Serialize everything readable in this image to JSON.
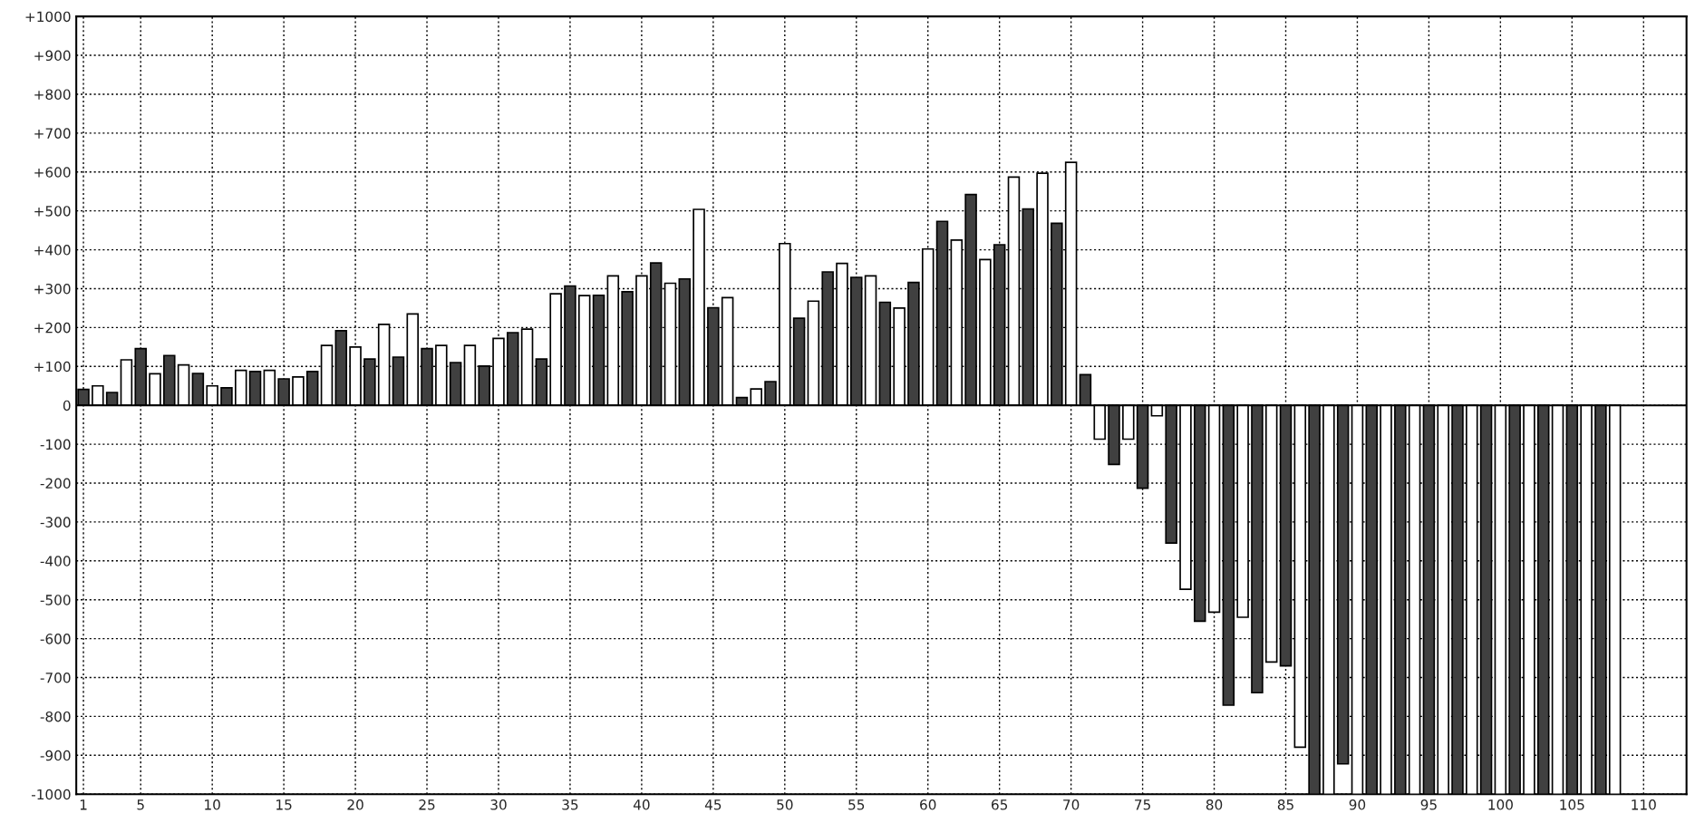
{
  "chart_data": {
    "type": "bar",
    "x": [
      1,
      2,
      3,
      4,
      5,
      6,
      7,
      8,
      9,
      10,
      11,
      12,
      13,
      14,
      15,
      16,
      17,
      18,
      19,
      20,
      21,
      22,
      23,
      24,
      25,
      26,
      27,
      28,
      29,
      30,
      31,
      32,
      33,
      34,
      35,
      36,
      37,
      38,
      39,
      40,
      41,
      42,
      43,
      44,
      45,
      46,
      47,
      48,
      49,
      50,
      51,
      52,
      53,
      54,
      55,
      56,
      57,
      58,
      59,
      60,
      61,
      62,
      63,
      64,
      65,
      66,
      67,
      68,
      69,
      70,
      71,
      72,
      73,
      74,
      75,
      76,
      77,
      78,
      79,
      80,
      81,
      82,
      83,
      84,
      85,
      86,
      87,
      88,
      89,
      90,
      91,
      92,
      93,
      94,
      95,
      96,
      97,
      98,
      99,
      100,
      101,
      102,
      103,
      104,
      105,
      106,
      107,
      108
    ],
    "values": [
      41,
      50,
      33,
      117,
      146,
      81,
      128,
      104,
      82,
      50,
      45,
      90,
      87,
      90,
      68,
      73,
      87,
      154,
      192,
      150,
      119,
      208,
      124,
      235,
      146,
      154,
      110,
      154,
      101,
      172,
      187,
      196,
      119,
      287,
      307,
      282,
      283,
      333,
      292,
      333,
      366,
      314,
      325,
      504,
      251,
      277,
      20,
      42,
      61,
      416,
      224,
      268,
      343,
      365,
      329,
      333,
      265,
      250,
      316,
      402,
      473,
      425,
      542,
      375,
      413,
      587,
      505,
      597,
      468,
      625,
      79,
      -87,
      -152,
      -87,
      -213,
      -27,
      -354,
      -473,
      -555,
      -532,
      -771,
      -545,
      -739,
      -660,
      -670,
      -879,
      -1000,
      -1000,
      -922,
      -1000,
      -1000,
      -1000,
      -1000,
      -1000,
      -1000,
      -1000,
      -1000,
      -1000,
      -1000,
      -1000,
      -1000,
      -1000,
      -1000,
      -1000,
      -1000,
      -1000,
      -1000,
      -1000
    ],
    "colors": [
      "#404040",
      "#ffffff",
      "#404040",
      "#ffffff",
      "#404040",
      "#ffffff",
      "#404040",
      "#ffffff",
      "#404040",
      "#ffffff",
      "#404040",
      "#ffffff",
      "#404040",
      "#ffffff",
      "#404040",
      "#ffffff",
      "#404040",
      "#ffffff",
      "#404040",
      "#ffffff",
      "#404040",
      "#ffffff",
      "#404040",
      "#ffffff",
      "#404040",
      "#ffffff",
      "#404040",
      "#ffffff",
      "#404040",
      "#ffffff",
      "#404040",
      "#ffffff",
      "#404040",
      "#ffffff",
      "#404040",
      "#ffffff",
      "#404040",
      "#ffffff",
      "#404040",
      "#ffffff",
      "#404040",
      "#ffffff",
      "#404040",
      "#ffffff",
      "#404040",
      "#ffffff",
      "#404040",
      "#ffffff",
      "#404040",
      "#ffffff",
      "#404040",
      "#ffffff",
      "#404040",
      "#ffffff",
      "#404040",
      "#ffffff",
      "#404040",
      "#ffffff",
      "#404040",
      "#ffffff",
      "#404040",
      "#ffffff",
      "#404040",
      "#ffffff",
      "#404040",
      "#ffffff",
      "#404040",
      "#ffffff",
      "#404040",
      "#ffffff",
      "#404040",
      "#ffffff",
      "#404040",
      "#ffffff",
      "#404040",
      "#ffffff",
      "#404040",
      "#ffffff",
      "#404040",
      "#ffffff",
      "#404040",
      "#ffffff",
      "#404040",
      "#ffffff",
      "#404040",
      "#ffffff",
      "#404040",
      "#ffffff",
      "#404040",
      "#ffffff",
      "#404040",
      "#ffffff",
      "#404040",
      "#ffffff",
      "#404040",
      "#ffffff",
      "#404040",
      "#ffffff",
      "#404040",
      "#ffffff",
      "#404040",
      "#ffffff",
      "#404040",
      "#ffffff",
      "#404040",
      "#ffffff",
      "#404040",
      "#ffffff"
    ],
    "xlim": [
      0.5,
      113
    ],
    "xticks": [
      1,
      5,
      10,
      15,
      20,
      25,
      30,
      35,
      40,
      45,
      50,
      55,
      60,
      65,
      70,
      75,
      80,
      85,
      90,
      95,
      100,
      105,
      110
    ],
    "ylim": [
      -1000,
      1000
    ],
    "yticks": [
      -1000,
      -900,
      -800,
      -700,
      -600,
      -500,
      -400,
      -300,
      -200,
      -100,
      0,
      {
        "value": 100,
        "label": "+100"
      },
      {
        "value": 200,
        "label": "+200"
      },
      {
        "value": 300,
        "label": "+300"
      },
      {
        "value": 400,
        "label": "+400"
      },
      {
        "value": 500,
        "label": "+500"
      },
      {
        "value": 600,
        "label": "+600"
      },
      {
        "value": 700,
        "label": "+700"
      },
      {
        "value": 800,
        "label": "+800"
      },
      {
        "value": 900,
        "label": "+900"
      },
      {
        "value": 1000,
        "label": "+1000"
      }
    ],
    "grid": true,
    "legend": false
  }
}
